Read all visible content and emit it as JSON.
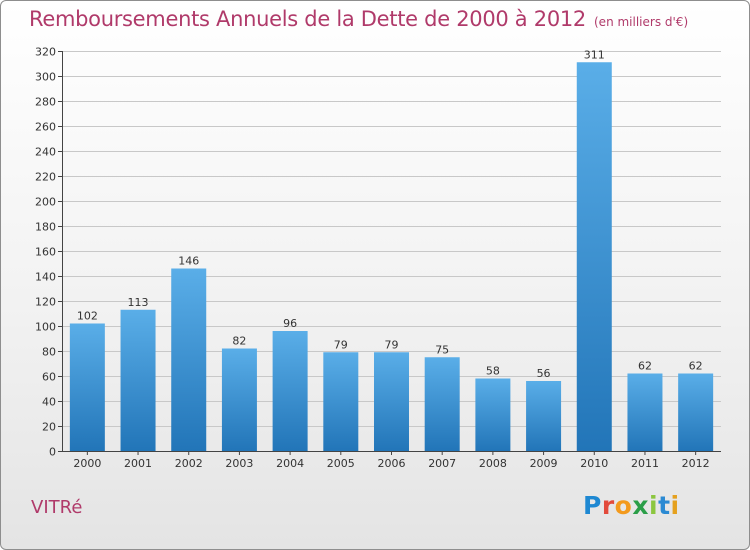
{
  "title": "Remboursements Annuels de la Dette de 2000 à 2012",
  "unit_note": "(en milliers d'€)",
  "commune": "VITRé",
  "logo_text": "Proxiti",
  "colors": {
    "title": "#b03a6a",
    "bar_top": "#5aaee8",
    "bar_bottom": "#2275b8",
    "grid": "#c8c8c8"
  },
  "chart_data": {
    "type": "bar",
    "title": "Remboursements Annuels de la Dette de 2000 à 2012",
    "categories": [
      "2000",
      "2001",
      "2002",
      "2003",
      "2004",
      "2005",
      "2006",
      "2007",
      "2008",
      "2009",
      "2010",
      "2011",
      "2012"
    ],
    "values": [
      102,
      113,
      146,
      82,
      96,
      79,
      79,
      75,
      58,
      56,
      311,
      62,
      62
    ],
    "ylim": [
      0,
      320
    ],
    "yticks": [
      0,
      20,
      40,
      60,
      80,
      100,
      120,
      140,
      160,
      180,
      200,
      220,
      240,
      260,
      280,
      300,
      320
    ],
    "grid": true,
    "data_labels": true,
    "xlabel": "",
    "ylabel": ""
  }
}
